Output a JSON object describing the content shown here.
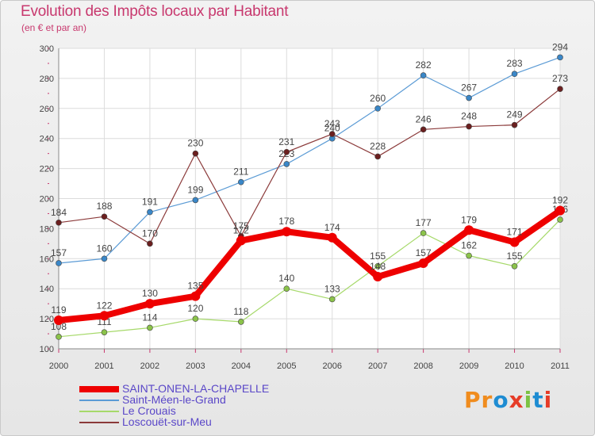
{
  "title": "Evolution des Impôts locaux par Habitant",
  "subtitle": "(en € et par an)",
  "logo": {
    "text": "Proxiti",
    "colors": [
      "#f08c1e",
      "#f08c1e",
      "#1e8cd2",
      "#e63c28",
      "#7cc243",
      "#1e8cd2",
      "#e63c28"
    ]
  },
  "chart_data": {
    "type": "line",
    "x": [
      "2000",
      "2001",
      "2002",
      "2003",
      "2004",
      "2005",
      "2006",
      "2007",
      "2008",
      "2009",
      "2010",
      "2011"
    ],
    "ylim": [
      100,
      300
    ],
    "yticks": [
      "100",
      "120",
      "140",
      "160",
      "180",
      "200",
      "220",
      "240",
      "260",
      "280",
      "300"
    ],
    "grid": true,
    "legend_position": "bottom-left",
    "series": [
      {
        "name": "Saint-Méen-le-Grand",
        "color": "#5b9bd5",
        "dot": "#3a87c8",
        "width": 1.2,
        "values": [
          157,
          160,
          191,
          199,
          211,
          223,
          240,
          260,
          282,
          267,
          283,
          294
        ]
      },
      {
        "name": "Le Crouais",
        "color": "#a6d96a",
        "dot": "#8bc34a",
        "width": 1.2,
        "values": [
          108,
          111,
          114,
          120,
          118,
          140,
          133,
          155,
          177,
          162,
          155,
          186
        ]
      },
      {
        "name": "Loscouët-sur-Meu",
        "color": "#8b3a3a",
        "dot": "#6b1f1f",
        "width": 1.2,
        "values": [
          184,
          188,
          170,
          230,
          175,
          231,
          243,
          228,
          246,
          248,
          249,
          273
        ]
      },
      {
        "name": "SAINT-ONEN-LA-CHAPELLE",
        "color": "#ee0000",
        "dot": "#ee0000",
        "width": 8,
        "values": [
          119,
          122,
          130,
          135,
          172,
          178,
          174,
          148,
          157,
          179,
          171,
          192
        ]
      }
    ],
    "legend_order": [
      "SAINT-ONEN-LA-CHAPELLE",
      "Saint-Méen-le-Grand",
      "Le Crouais",
      "Loscouët-sur-Meu"
    ]
  }
}
